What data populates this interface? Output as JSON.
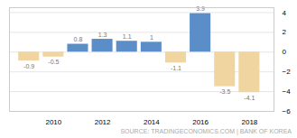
{
  "chart_data": {
    "type": "bar",
    "x": [
      2009,
      2010,
      2011,
      2012,
      2013,
      2014,
      2015,
      2016,
      2017,
      2018
    ],
    "values": [
      -0.9,
      -0.5,
      0.8,
      1.3,
      1.1,
      1.0,
      -1.1,
      3.9,
      -3.5,
      -4.1
    ],
    "colors": [
      "#f0d5a0",
      "#f0d5a0",
      "#5b8ec9",
      "#5b8ec9",
      "#5b8ec9",
      "#5b8ec9",
      "#f0d5a0",
      "#5b8ec9",
      "#f0d5a0",
      "#f0d5a0"
    ],
    "xlim": [
      2008.2,
      2019.0
    ],
    "xticks": [
      2010,
      2012,
      2014,
      2016,
      2018
    ],
    "ylim": [
      -6,
      4.5
    ],
    "yticks": [
      -6,
      -4,
      -2,
      0,
      2,
      4
    ],
    "grid": true,
    "data_labels": true,
    "annotations": [
      "SOURCE: TRADINGECONOMICS.COM | BANK OF KOREA"
    ]
  }
}
